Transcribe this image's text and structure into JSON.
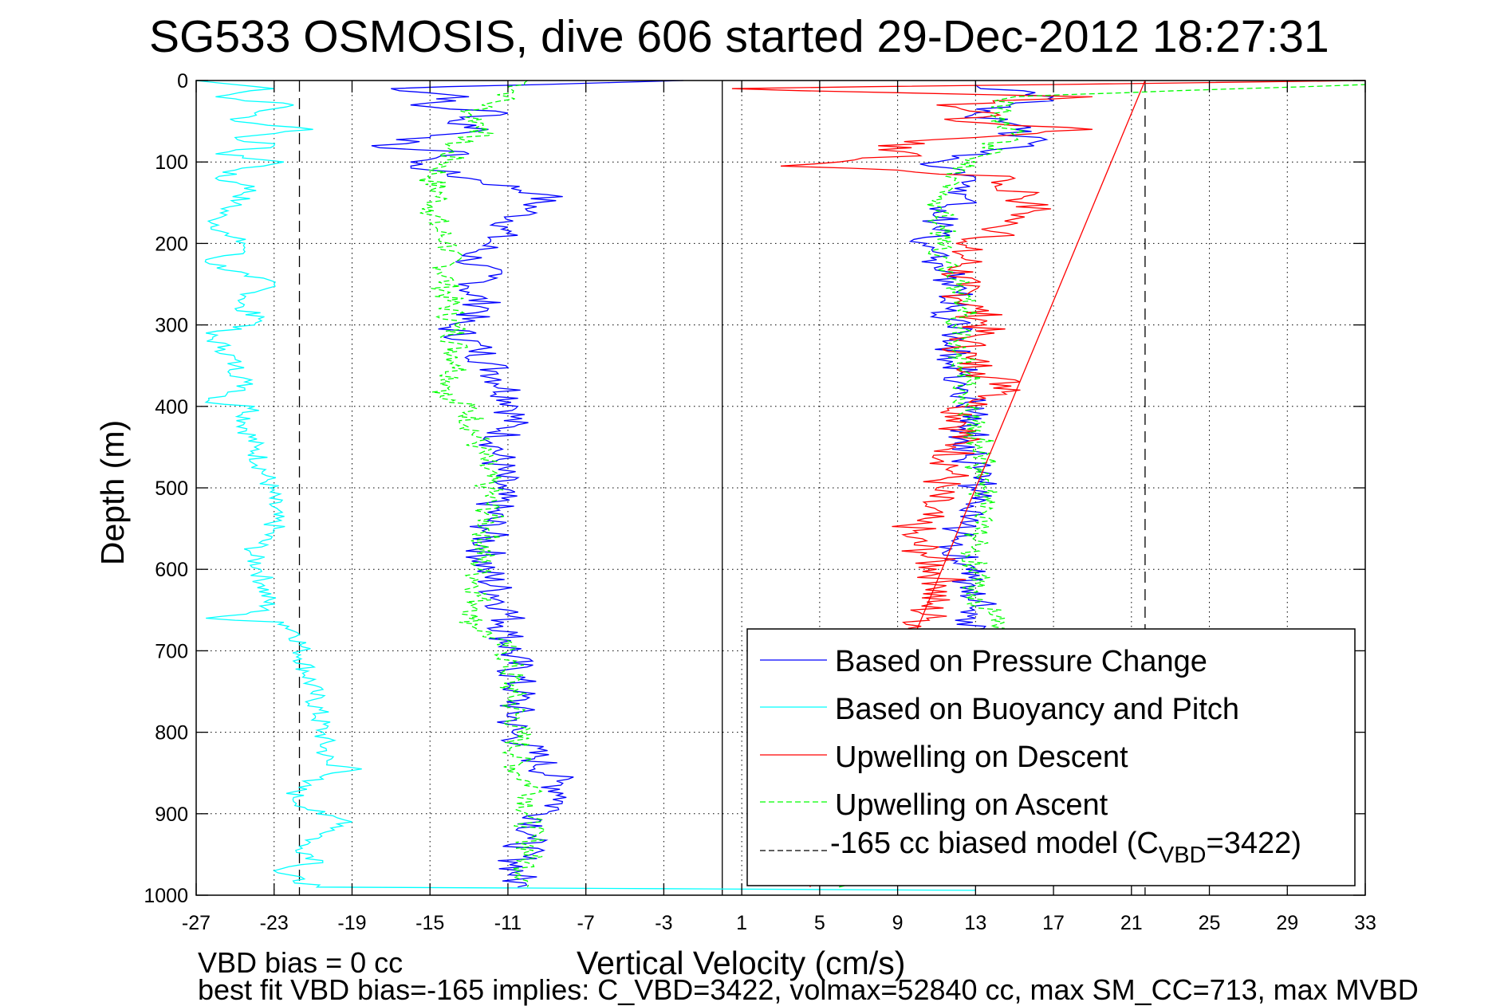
{
  "chart_data": {
    "type": "line",
    "title": "SG533 OSMOSIS, dive 606 started 29-Dec-2012 18:27:31",
    "xlabel": "Vertical Velocity (cm/s)",
    "ylabel": "Depth (m)",
    "xlim": [
      -27,
      33
    ],
    "ylim": [
      0,
      1000
    ],
    "y_reversed": true,
    "grid": true,
    "x_ticks": [
      -27,
      -23,
      -19,
      -15,
      -11,
      -7,
      -3,
      1,
      5,
      9,
      13,
      17,
      21,
      25,
      29,
      33
    ],
    "y_ticks": [
      0,
      100,
      200,
      300,
      400,
      500,
      600,
      700,
      800,
      900,
      1000
    ],
    "zero_line_x": 0,
    "reference_lines": [
      {
        "name": "model-speed-descent",
        "x": -21.7,
        "style": "dashed",
        "color": "#000000"
      },
      {
        "name": "model-speed-ascent",
        "x": 21.7,
        "style": "dashed",
        "color": "#000000"
      }
    ],
    "legend": {
      "placement": "lower-right",
      "entries": [
        {
          "label": "Based on Pressure Change",
          "color": "#0000ff",
          "style": "solid"
        },
        {
          "label": "Based on Buoyancy and Pitch",
          "color": "#00ffff",
          "style": "solid"
        },
        {
          "label": "Upwelling on Descent",
          "color": "#ff0000",
          "style": "solid"
        },
        {
          "label": "Upwelling on Ascent",
          "color": "#00ff00",
          "style": "dashed"
        },
        {
          "label_main": "-165 cc biased model (C",
          "label_sub": "VBD",
          "label_tail": "=3422)",
          "color": "#000000",
          "style": "dashed"
        }
      ]
    },
    "series": [
      {
        "name": "Based on Pressure Change (descent)",
        "color": "#0000ff",
        "style": "solid",
        "depth": [
          0,
          10,
          20,
          30,
          40,
          50,
          60,
          70,
          80,
          90,
          100,
          110,
          120,
          140,
          160,
          180,
          200,
          220,
          240,
          260,
          280,
          300,
          330,
          360,
          400,
          450,
          500,
          550,
          600,
          650,
          680,
          700,
          750,
          800,
          830,
          860,
          880,
          900,
          930,
          960,
          990
        ],
        "velocity": [
          -2,
          -17,
          -13,
          -16,
          -11,
          -14,
          -12,
          -15,
          -18,
          -13,
          -16,
          -15,
          -13,
          -9,
          -10,
          -11,
          -12,
          -13,
          -12,
          -13,
          -12,
          -14,
          -12.5,
          -11.5,
          -10.5,
          -11.5,
          -11.5,
          -12,
          -12.2,
          -11,
          -11,
          -10.8,
          -10.5,
          -10.8,
          -9.6,
          -8.5,
          -8,
          -9,
          -10,
          -10.5,
          -10.5
        ]
      },
      {
        "name": "Based on Pressure Change (ascent)",
        "color": "#0000ff",
        "style": "solid",
        "depth": [
          990,
          960,
          930,
          900,
          870,
          840,
          800,
          760,
          720,
          680,
          660,
          640,
          600,
          560,
          520,
          500,
          480,
          460,
          420,
          380,
          340,
          300,
          280,
          260,
          240,
          220,
          200,
          180,
          160,
          140,
          120,
          100,
          80,
          60,
          40,
          20,
          5
        ],
        "velocity": [
          6,
          9,
          9.5,
          10,
          12,
          11.5,
          12.5,
          11.8,
          12,
          12.5,
          13,
          13.5,
          12.5,
          12,
          12.5,
          13,
          13.2,
          12.5,
          12.8,
          12.6,
          12,
          11.8,
          11.5,
          12,
          11.5,
          11,
          10.5,
          11,
          11.5,
          12.5,
          13,
          11,
          16,
          15,
          13,
          17,
          13
        ]
      },
      {
        "name": "Based on Buoyancy and Pitch",
        "color": "#00ffff",
        "style": "solid",
        "depth": [
          0,
          5,
          10,
          20,
          30,
          40,
          50,
          60,
          70,
          80,
          90,
          100,
          110,
          120,
          130,
          150,
          170,
          190,
          200,
          210,
          220,
          240,
          250,
          260,
          280,
          290,
          300,
          310,
          330,
          350,
          370,
          380,
          395,
          400,
          420,
          450,
          500,
          550,
          580,
          600,
          620,
          650,
          660,
          665,
          680,
          700,
          750,
          800,
          840,
          845,
          860,
          880,
          900,
          910,
          940,
          960,
          970,
          990,
          994
        ],
        "velocity": [
          -27,
          -25,
          -23,
          -26,
          -22,
          -24,
          -25,
          -21,
          -25,
          -23,
          -26,
          -22.5,
          -25,
          -26,
          -24,
          -25,
          -26,
          -25.5,
          -24.5,
          -24.5,
          -26.5,
          -24.5,
          -23,
          -24,
          -25,
          -23.5,
          -24,
          -26.5,
          -25.5,
          -25,
          -24.5,
          -24.5,
          -26.5,
          -24,
          -24.5,
          -24,
          -23.2,
          -23,
          -24.2,
          -23.7,
          -23.5,
          -23.3,
          -26.5,
          -22.5,
          -21.7,
          -21.6,
          -21,
          -20.5,
          -20.3,
          -18.5,
          -21.5,
          -22,
          -20.8,
          -19,
          -21.7,
          -20.5,
          -23,
          -20.8,
          13
        ]
      },
      {
        "name": "Upwelling on Descent (descent leg)",
        "color": "#ff0000",
        "style": "solid",
        "depth": [
          0,
          10,
          15,
          20,
          30,
          40,
          50,
          60,
          70,
          80,
          90,
          100,
          105,
          110,
          120,
          130,
          140,
          150,
          160,
          170,
          180,
          190,
          200,
          220,
          250,
          280,
          300,
          320,
          340,
          360,
          380,
          400,
          420,
          450,
          480,
          500,
          520,
          540,
          560,
          580,
          600,
          620,
          640,
          660,
          680,
          700
        ],
        "velocity": [
          33,
          0.5,
          9,
          19,
          11,
          14,
          12,
          19,
          13,
          8,
          10,
          6,
          3,
          9,
          15,
          14,
          16,
          15.5,
          16,
          15,
          14,
          15,
          12,
          12.5,
          12,
          13,
          13.5,
          12.5,
          12.5,
          13.5,
          15.3,
          12.5,
          12.5,
          12,
          11.8,
          11,
          10.5,
          10,
          9.5,
          10.5,
          11,
          11.5,
          10.5,
          10.5,
          10,
          10
        ]
      },
      {
        "name": "Upwelling on Ascent",
        "color": "#00ff00",
        "style": "dashed",
        "descent_depth": [
          0,
          20,
          40,
          60,
          80,
          100,
          120,
          140,
          160,
          180,
          200,
          250,
          300,
          350,
          380,
          390,
          400,
          450,
          500,
          550,
          600,
          650,
          660,
          700,
          750,
          800,
          850,
          870,
          900,
          930,
          960,
          990
        ],
        "descent_velocity": [
          -10,
          -11,
          -13,
          -12,
          -14,
          -14,
          -15,
          -14.5,
          -14.8,
          -14.7,
          -14,
          -14.2,
          -13.8,
          -13.5,
          -14,
          -14.5,
          -13,
          -12.5,
          -12,
          -12,
          -12.5,
          -12.5,
          -13,
          -11,
          -10.8,
          -10.5,
          -10.5,
          -9.5,
          -10,
          -9.8,
          -10,
          -10
        ],
        "ascent_depth": [
          990,
          950,
          900,
          850,
          800,
          750,
          700,
          660,
          640,
          600,
          560,
          520,
          500,
          480,
          460,
          400,
          360,
          320,
          300,
          280,
          250,
          200,
          180,
          160,
          140,
          120,
          100,
          80,
          60,
          40,
          20,
          5
        ],
        "ascent_velocity": [
          6,
          13,
          13,
          13,
          13.8,
          13.5,
          14.5,
          14.5,
          13.2,
          13,
          13,
          13.2,
          13.4,
          13,
          13.5,
          12.5,
          12.7,
          12,
          12,
          12.5,
          12,
          11,
          11.5,
          11,
          11.5,
          12,
          13,
          14,
          15,
          14,
          15,
          33
        ]
      },
      {
        "name": "-165 cc biased model",
        "color": "#ff0000",
        "style": "solid",
        "depth": [
          0,
          990
        ],
        "velocity": [
          21.7,
          4.5
        ]
      }
    ]
  },
  "annotations": {
    "vbd_bias": "VBD bias = 0 cc",
    "best_fit": "best fit VBD bias=-165 implies: C_VBD=3422, volmax=52840 cc, max SM_CC=713, max MVBD"
  }
}
